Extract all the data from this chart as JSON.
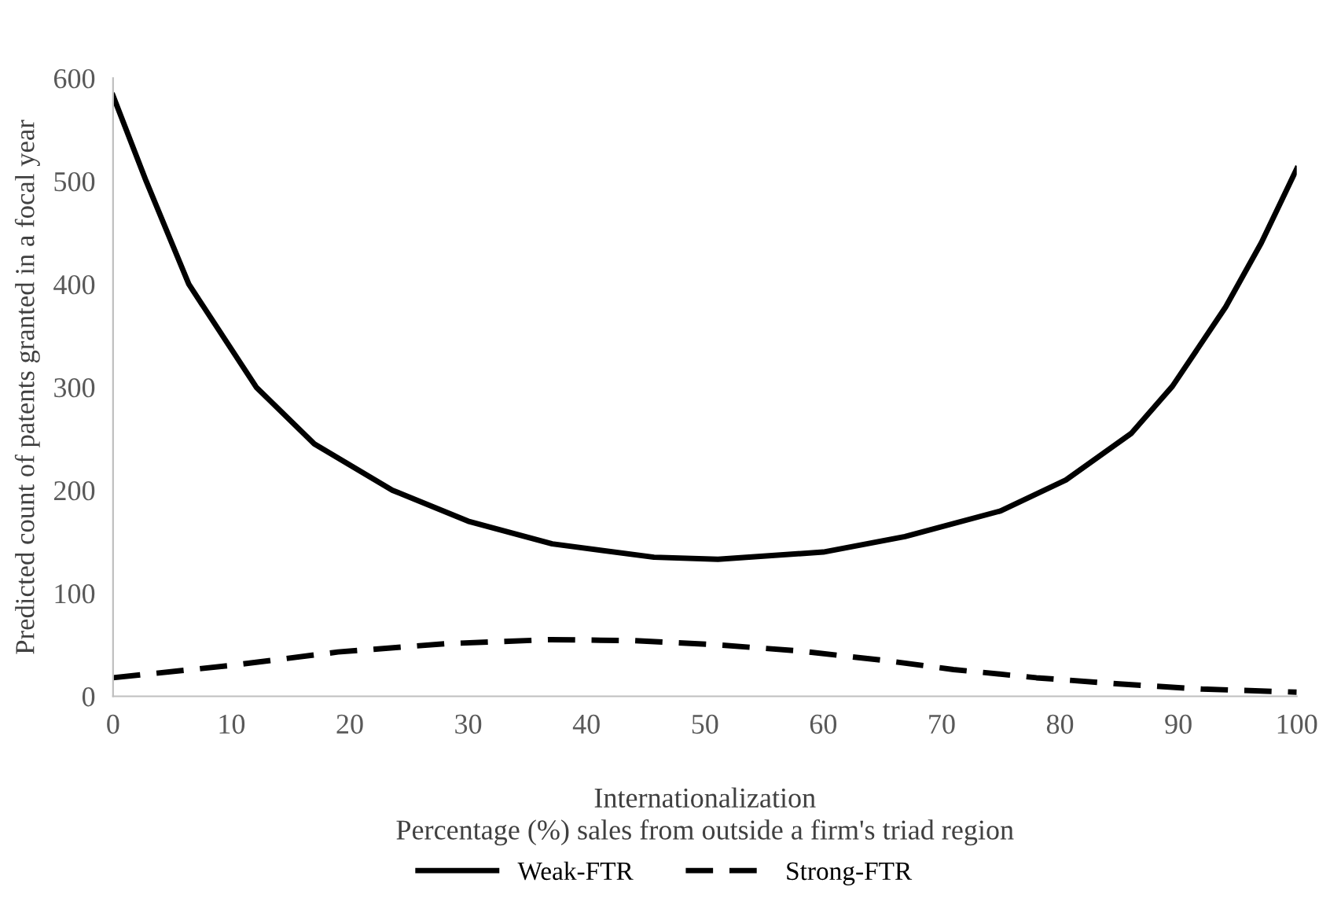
{
  "chart_data": {
    "type": "line",
    "xlabel": "Internationalization\nPercentage (%) sales from outside a firm's triad region",
    "ylabel": "Predicted count of patents granted in a focal year",
    "xlim": [
      0,
      100
    ],
    "xticks": [
      0,
      10,
      20,
      30,
      40,
      50,
      60,
      70,
      80,
      90,
      100
    ],
    "ylim": [
      0,
      600
    ],
    "yticks": [
      0,
      100,
      200,
      300,
      400,
      500,
      600
    ],
    "grid": false,
    "legend": "bottom",
    "marker": "none",
    "series": [
      {
        "name": "Weak-FTR",
        "color": "#000000",
        "line_style": "solid",
        "x": [
          0,
          2.8,
          6.4,
          12.1,
          17,
          23.6,
          30,
          37.1,
          45.7,
          51.1,
          60,
          66.9,
          75,
          80.5,
          86,
          89.5,
          94,
          97,
          100
        ],
        "values": [
          583,
          500,
          400,
          300,
          245,
          200,
          170,
          148,
          135,
          133,
          140,
          155,
          180,
          210,
          255,
          301,
          378,
          440,
          512
        ]
      },
      {
        "name": "Strong-FTR",
        "color": "#000000",
        "line_style": "dashed",
        "x": [
          0,
          10,
          19,
          28,
          37,
          44,
          51,
          58,
          65,
          71,
          78,
          85,
          92,
          100
        ],
        "values": [
          18,
          30,
          43,
          51,
          55,
          54,
          50,
          44,
          35,
          26,
          18,
          12,
          7,
          4
        ]
      }
    ]
  }
}
